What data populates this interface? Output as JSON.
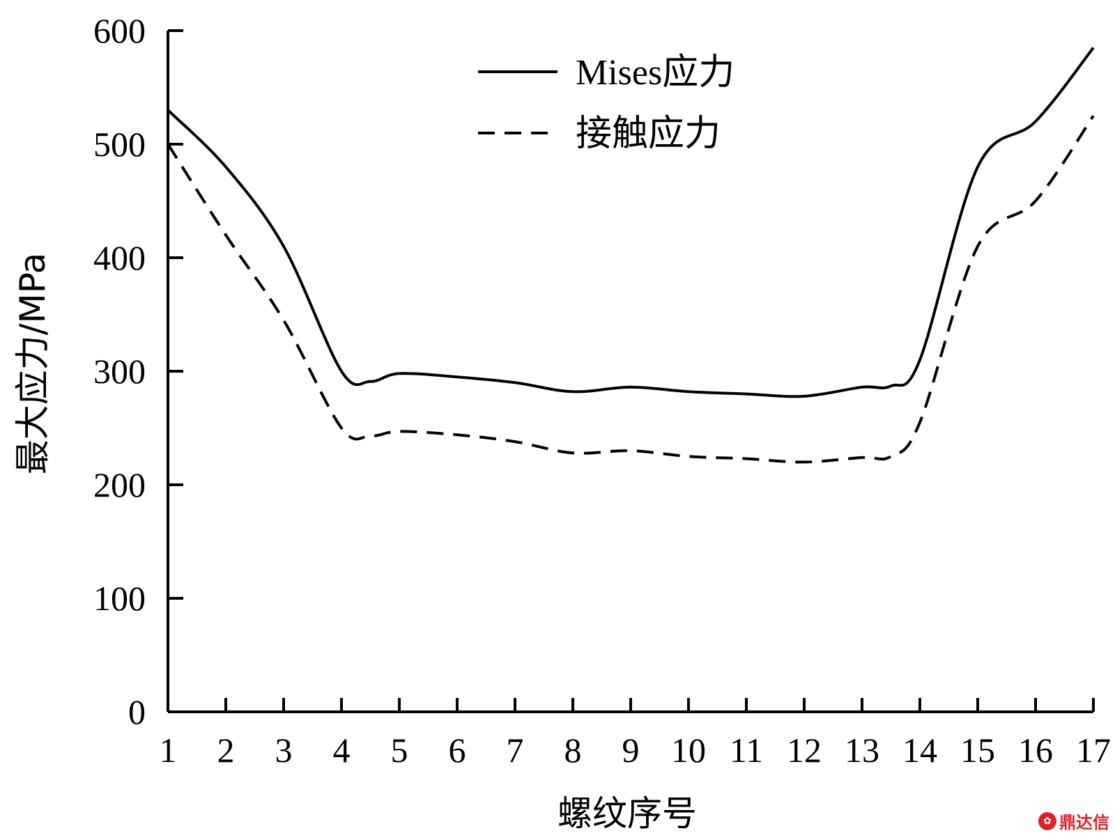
{
  "chart_data": {
    "type": "line",
    "title": "",
    "xlabel": "螺纹序号",
    "ylabel": "最大应力/MPa",
    "x": [
      1,
      2,
      3,
      4,
      4.5,
      5,
      6,
      7,
      8,
      9,
      10,
      11,
      12,
      13,
      13.5,
      14,
      15,
      16,
      17
    ],
    "xticks": [
      "1",
      "2",
      "3",
      "4",
      "5",
      "6",
      "7",
      "8",
      "9",
      "10",
      "11",
      "12",
      "13",
      "14",
      "15",
      "16",
      "17"
    ],
    "yticks": [
      "0",
      "100",
      "200",
      "300",
      "400",
      "500",
      "600"
    ],
    "xlim": [
      1,
      17
    ],
    "ylim": [
      0,
      600
    ],
    "grid": false,
    "legend_position": "top-center",
    "series": [
      {
        "name": "Mises应力",
        "style": "solid",
        "color": "#000000",
        "values": [
          530,
          480,
          410,
          300,
          291,
          298,
          295,
          290,
          282,
          286,
          282,
          280,
          278,
          286,
          287,
          310,
          480,
          520,
          585
        ]
      },
      {
        "name": "接触应力",
        "style": "dashed",
        "color": "#000000",
        "values": [
          500,
          420,
          345,
          250,
          243,
          247,
          244,
          238,
          228,
          230,
          225,
          223,
          220,
          224,
          225,
          255,
          410,
          450,
          525
        ]
      }
    ]
  },
  "watermark": {
    "logo_icon": "dingdaxin-logo-icon",
    "text": "鼎达信"
  }
}
